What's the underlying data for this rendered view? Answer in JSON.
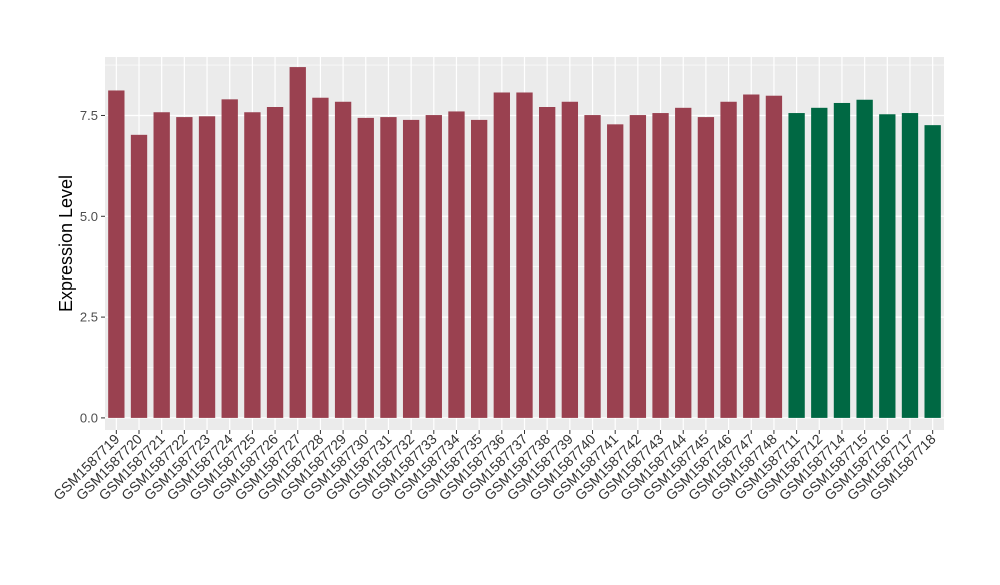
{
  "chart_data": {
    "type": "bar",
    "title": "",
    "xlabel": "",
    "ylabel": "Expression Level",
    "ylim": [
      -0.3,
      8.95
    ],
    "yticks": [
      0.0,
      2.5,
      5.0,
      7.5
    ],
    "ytick_labels": [
      "0.0",
      "2.5",
      "5.0",
      "7.5"
    ],
    "grid": true,
    "legend": "none",
    "categories": [
      "GSM1587719",
      "GSM1587720",
      "GSM1587721",
      "GSM1587722",
      "GSM1587723",
      "GSM1587724",
      "GSM1587725",
      "GSM1587726",
      "GSM1587727",
      "GSM1587728",
      "GSM1587729",
      "GSM1587730",
      "GSM1587731",
      "GSM1587732",
      "GSM1587733",
      "GSM1587734",
      "GSM1587735",
      "GSM1587736",
      "GSM1587737",
      "GSM1587738",
      "GSM1587739",
      "GSM1587740",
      "GSM1587741",
      "GSM1587742",
      "GSM1587743",
      "GSM1587744",
      "GSM1587745",
      "GSM1587746",
      "GSM1587747",
      "GSM1587748",
      "GSM1587711",
      "GSM1587712",
      "GSM1587714",
      "GSM1587715",
      "GSM1587716",
      "GSM1587717",
      "GSM1587718"
    ],
    "values": [
      8.12,
      7.02,
      7.58,
      7.46,
      7.48,
      7.9,
      7.58,
      7.71,
      8.7,
      7.94,
      7.84,
      7.44,
      7.46,
      7.39,
      7.51,
      7.6,
      7.39,
      8.07,
      8.07,
      7.71,
      7.84,
      7.51,
      7.28,
      7.51,
      7.56,
      7.69,
      7.46,
      7.84,
      8.02,
      7.99,
      7.56,
      7.69,
      7.81,
      7.89,
      7.53,
      7.56,
      7.26
    ],
    "groups": [
      "a",
      "a",
      "a",
      "a",
      "a",
      "a",
      "a",
      "a",
      "a",
      "a",
      "a",
      "a",
      "a",
      "a",
      "a",
      "a",
      "a",
      "a",
      "a",
      "a",
      "a",
      "a",
      "a",
      "a",
      "a",
      "a",
      "a",
      "a",
      "a",
      "a",
      "b",
      "b",
      "b",
      "b",
      "b",
      "b",
      "b"
    ],
    "colors": {
      "a": "#9a4150",
      "b": "#006843"
    },
    "panel_background": "#ebebeb",
    "grid_color": "#ffffff"
  }
}
